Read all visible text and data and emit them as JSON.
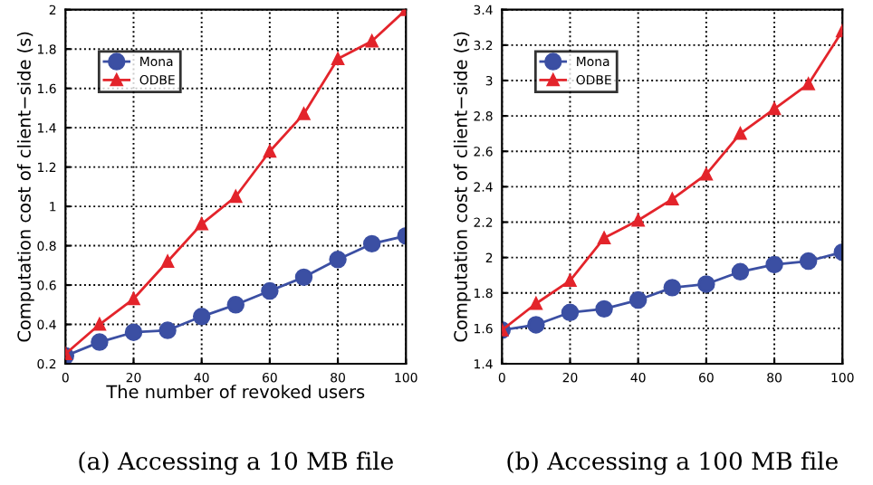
{
  "chart_data": [
    {
      "type": "line",
      "xlabel": "The number of revoked users",
      "ylabel": "Computation cost of client−side (s)",
      "x": [
        0,
        10,
        20,
        30,
        40,
        50,
        60,
        70,
        80,
        90,
        100
      ],
      "xlim": [
        0,
        100
      ],
      "xticks": [
        0,
        20,
        40,
        60,
        80,
        100
      ],
      "ylim": [
        0.2,
        2
      ],
      "yticks": [
        0.2,
        0.4,
        0.6,
        0.8,
        1,
        1.2,
        1.4,
        1.6,
        1.8,
        2
      ],
      "grid": true,
      "legend": "top left",
      "annotations": [
        "(a) Accessing a 10 MB file"
      ],
      "series": [
        {
          "name": "Mona",
          "color": "#3b4fa3",
          "marker": "circle",
          "values": [
            0.24,
            0.31,
            0.36,
            0.37,
            0.44,
            0.5,
            0.57,
            0.64,
            0.73,
            0.81,
            0.85
          ]
        },
        {
          "name": "ODBE",
          "color": "#e3242b",
          "marker": "triangle",
          "values": [
            0.25,
            0.4,
            0.53,
            0.72,
            0.91,
            1.05,
            1.28,
            1.47,
            1.75,
            1.84,
            2.0
          ]
        }
      ]
    },
    {
      "type": "line",
      "ylabel": "Computation cost of client−side (s)",
      "x": [
        0,
        10,
        20,
        30,
        40,
        50,
        60,
        70,
        80,
        90,
        100
      ],
      "xlim": [
        0,
        100
      ],
      "xticks": [
        0,
        20,
        40,
        60,
        80,
        100
      ],
      "ylim": [
        1.4,
        3.4
      ],
      "yticks": [
        1.4,
        1.6,
        1.8,
        2,
        2.2,
        2.4,
        2.6,
        2.8,
        3,
        3.2,
        3.4
      ],
      "grid": true,
      "legend": "top left",
      "annotations": [
        "(b) Accessing a 100 MB file"
      ],
      "series": [
        {
          "name": "Mona",
          "color": "#3b4fa3",
          "marker": "circle",
          "values": [
            1.59,
            1.62,
            1.69,
            1.71,
            1.76,
            1.83,
            1.85,
            1.92,
            1.96,
            1.98,
            2.03
          ]
        },
        {
          "name": "ODBE",
          "color": "#e3242b",
          "marker": "triangle",
          "values": [
            1.59,
            1.74,
            1.87,
            2.11,
            2.21,
            2.33,
            2.47,
            2.7,
            2.84,
            2.98,
            3.28
          ]
        }
      ]
    }
  ]
}
